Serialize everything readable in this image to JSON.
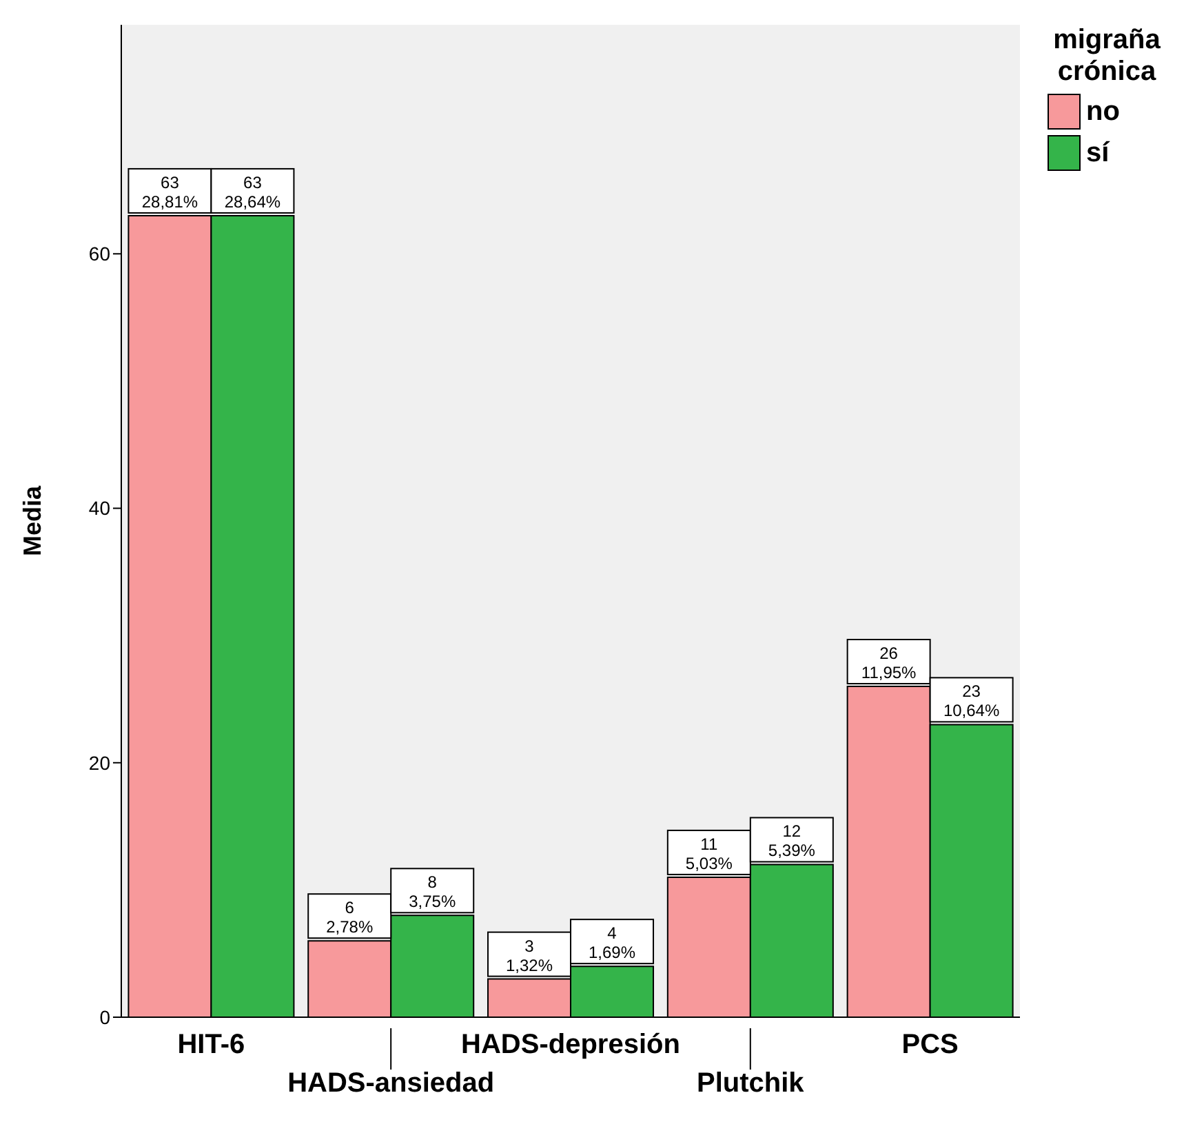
{
  "chart_data": {
    "type": "bar",
    "ylabel": "Media",
    "legend_title": "migraña crónica",
    "categories": [
      "HIT-6",
      "HADS-ansiedad",
      "HADS-depresión",
      "Plutchik",
      "PCS"
    ],
    "series": [
      {
        "name": "no",
        "color": "#f7999b",
        "values": [
          63,
          6,
          3,
          11,
          26
        ],
        "value_labels": [
          "63\n28,81%",
          "6\n2,78%",
          "3\n1,32%",
          "11\n5,03%",
          "26\n11,95%"
        ]
      },
      {
        "name": "sí",
        "color": "#34b44a",
        "values": [
          63,
          8,
          4,
          12,
          23
        ],
        "value_labels": [
          "63\n28,64%",
          "8\n3,75%",
          "4\n1,69%",
          "12\n5,39%",
          "23\n10,64%"
        ]
      }
    ],
    "ylim": [
      0,
      78
    ],
    "yticks": [
      0,
      20,
      40,
      60
    ],
    "legend": "top right"
  }
}
